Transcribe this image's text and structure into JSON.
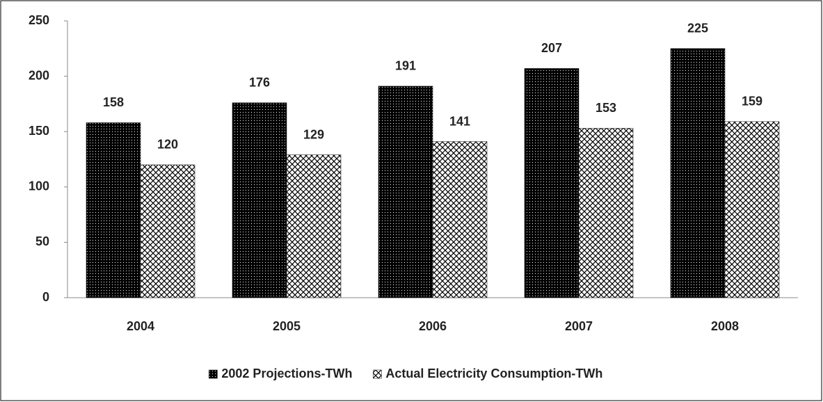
{
  "chart_data": {
    "type": "bar",
    "categories": [
      "2004",
      "2005",
      "2006",
      "2007",
      "2008"
    ],
    "series": [
      {
        "name": "2002 Projections-TWh",
        "color": "#000000",
        "values": [
          158,
          176,
          191,
          207,
          225
        ]
      },
      {
        "name": "Actual Electricity Consumption-TWh",
        "color": "#ffffff",
        "values": [
          120,
          129,
          141,
          153,
          159
        ]
      }
    ],
    "ylim": [
      0,
      250
    ],
    "yticks": [
      0,
      50,
      100,
      150,
      200,
      250
    ],
    "grid": false,
    "legend": "bottom"
  }
}
